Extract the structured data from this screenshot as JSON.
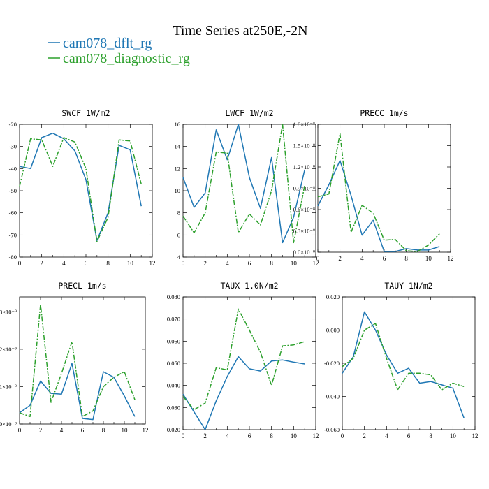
{
  "figure": {
    "title": "Time Series at250E,-2N",
    "legend": [
      {
        "label": "cam078_dflt_rg",
        "color": "#1f77b4",
        "dash": "solid"
      },
      {
        "label": "cam078_diagnostic_rg",
        "color": "#2ca02c",
        "dash": "dashdot"
      }
    ]
  },
  "chart_data": [
    {
      "type": "line",
      "name": "SWCF",
      "title": "SWCF  1W/m2",
      "x": [
        0,
        1,
        2,
        3,
        4,
        5,
        6,
        7,
        8,
        9,
        10,
        11
      ],
      "xlim": [
        0,
        12
      ],
      "xticks": [
        "0",
        "2",
        "4",
        "6",
        "8",
        "10",
        "12"
      ],
      "ylim": [
        -80,
        -20
      ],
      "yticks": [
        "-80",
        "-70",
        "-60",
        "-50",
        "-40",
        "-30",
        "-20"
      ],
      "series": [
        {
          "name": "cam078_dflt_rg",
          "values": [
            -39,
            -40,
            -26,
            -24,
            -26.5,
            -32,
            -45,
            -72.5,
            -60,
            -29.5,
            -31.5,
            -57
          ]
        },
        {
          "name": "cam078_diagnostic_rg",
          "values": [
            -48,
            -26.5,
            -27,
            -39,
            -26,
            -28,
            -40,
            -73,
            -62,
            -27,
            -27.5,
            -47
          ]
        }
      ]
    },
    {
      "type": "line",
      "name": "LWCF",
      "title": "LWCF  1W/m2",
      "x": [
        0,
        1,
        2,
        3,
        4,
        5,
        6,
        7,
        8,
        9,
        10,
        11
      ],
      "xlim": [
        0,
        12
      ],
      "xticks": [
        "0",
        "2",
        "4",
        "6",
        "8",
        "10",
        "12"
      ],
      "ylim": [
        4,
        16
      ],
      "yticks": [
        "4",
        "6",
        "8",
        "10",
        "12",
        "14",
        "16"
      ],
      "series": [
        {
          "name": "cam078_dflt_rg",
          "values": [
            11.2,
            8.5,
            9.8,
            15.5,
            12.8,
            16.0,
            11.2,
            8.4,
            13.0,
            5.3,
            7.6,
            11.9
          ]
        },
        {
          "name": "cam078_diagnostic_rg",
          "values": [
            7.7,
            6.2,
            8.0,
            13.5,
            13.4,
            6.2,
            7.9,
            6.9,
            10.0,
            16.0,
            5.3,
            10.5
          ]
        }
      ]
    },
    {
      "type": "line",
      "name": "PRECC",
      "title": "PRECC  1m/s",
      "x": [
        0,
        1,
        2,
        3,
        4,
        5,
        6,
        7,
        8,
        9,
        10,
        11
      ],
      "xlim": [
        0,
        12
      ],
      "xticks": [
        "0",
        "2",
        "4",
        "6",
        "8",
        "10",
        "12"
      ],
      "ylim": [
        0,
        1.8e-08
      ],
      "yticks": [
        "0.0×10⁻⁸",
        "0.3×10⁻⁸",
        "0.6×10⁻⁸",
        "0.9×10⁻⁸",
        "1.2×10⁻⁸",
        "1.5×10⁻⁸",
        "1.8×10⁻⁸"
      ],
      "series": [
        {
          "name": "cam078_dflt_rg",
          "values": [
            6.5e-09,
            9.5e-09,
            1.29e-08,
            8e-09,
            2.4e-09,
            4.5e-09,
            1e-10,
            1e-10,
            5e-10,
            3e-10,
            3e-10,
            8e-10
          ]
        },
        {
          "name": "cam078_diagnostic_rg",
          "values": [
            7.8e-09,
            8.2e-09,
            1.67e-08,
            2.8e-09,
            6.6e-09,
            5.5e-09,
            1.7e-09,
            1.8e-09,
            2e-10,
            1e-10,
            1e-09,
            2.6e-09
          ]
        }
      ]
    },
    {
      "type": "line",
      "name": "PRECL",
      "title": "PRECL  1m/s",
      "x": [
        0,
        1,
        2,
        3,
        4,
        5,
        6,
        7,
        8,
        9,
        10,
        11
      ],
      "xlim": [
        0,
        12
      ],
      "xticks": [
        "0",
        "2",
        "4",
        "6",
        "8",
        "10",
        "12"
      ],
      "ylim": [
        0,
        3.4
      ],
      "yticks": [
        "0×10⁻⁹",
        "1×10⁻⁹",
        "2×10⁻⁹",
        "3×10⁻⁹"
      ],
      "yticks_values": [
        0,
        1,
        2,
        3
      ],
      "y_unit_note": "x10^-9",
      "series": [
        {
          "name": "cam078_dflt_rg",
          "values": [
            0.3,
            0.5,
            1.15,
            0.82,
            0.8,
            1.62,
            0.15,
            0.12,
            1.4,
            1.25,
            0.75,
            0.2
          ]
        },
        {
          "name": "cam078_diagnostic_rg",
          "values": [
            0.3,
            0.2,
            3.2,
            0.58,
            1.35,
            2.2,
            0.2,
            0.35,
            1.0,
            1.25,
            1.4,
            0.65
          ]
        }
      ]
    },
    {
      "type": "line",
      "name": "TAUX",
      "title": "TAUX  1.0N/m2",
      "x": [
        0,
        1,
        2,
        3,
        4,
        5,
        6,
        7,
        8,
        9,
        10,
        11
      ],
      "xlim": [
        0,
        12
      ],
      "xticks": [
        "0",
        "2",
        "4",
        "6",
        "8",
        "10",
        "12"
      ],
      "ylim": [
        0.02,
        0.08
      ],
      "yticks": [
        "0.020",
        "0.030",
        "0.040",
        "0.050",
        "0.060",
        "0.070",
        "0.080"
      ],
      "series": [
        {
          "name": "cam078_dflt_rg",
          "values": [
            0.036,
            0.028,
            0.02,
            0.033,
            0.044,
            0.053,
            0.0475,
            0.0465,
            0.051,
            0.0515,
            0.0505,
            0.0497
          ]
        },
        {
          "name": "cam078_diagnostic_rg",
          "values": [
            0.035,
            0.029,
            0.032,
            0.048,
            0.047,
            0.0745,
            0.065,
            0.055,
            0.04,
            0.0578,
            0.0583,
            0.0598
          ]
        }
      ]
    },
    {
      "type": "line",
      "name": "TAUY",
      "title": "TAUY  1N/m2",
      "x": [
        0,
        1,
        2,
        3,
        4,
        5,
        6,
        7,
        8,
        9,
        10,
        11
      ],
      "xlim": [
        0,
        12
      ],
      "xticks": [
        "0",
        "2",
        "4",
        "6",
        "8",
        "10",
        "12"
      ],
      "ylim": [
        -0.06,
        0.02
      ],
      "yticks": [
        "-0.060",
        "-0.040",
        "-0.020",
        "0.000",
        "0.020"
      ],
      "series": [
        {
          "name": "cam078_dflt_rg",
          "values": [
            -0.026,
            -0.016,
            0.011,
            0.0,
            -0.015,
            -0.026,
            -0.023,
            -0.032,
            -0.031,
            -0.033,
            -0.035,
            -0.053
          ]
        },
        {
          "name": "cam078_diagnostic_rg",
          "values": [
            -0.022,
            -0.017,
            0.0,
            0.004,
            -0.017,
            -0.036,
            -0.026,
            -0.026,
            -0.027,
            -0.036,
            -0.032,
            -0.034
          ]
        }
      ]
    }
  ]
}
